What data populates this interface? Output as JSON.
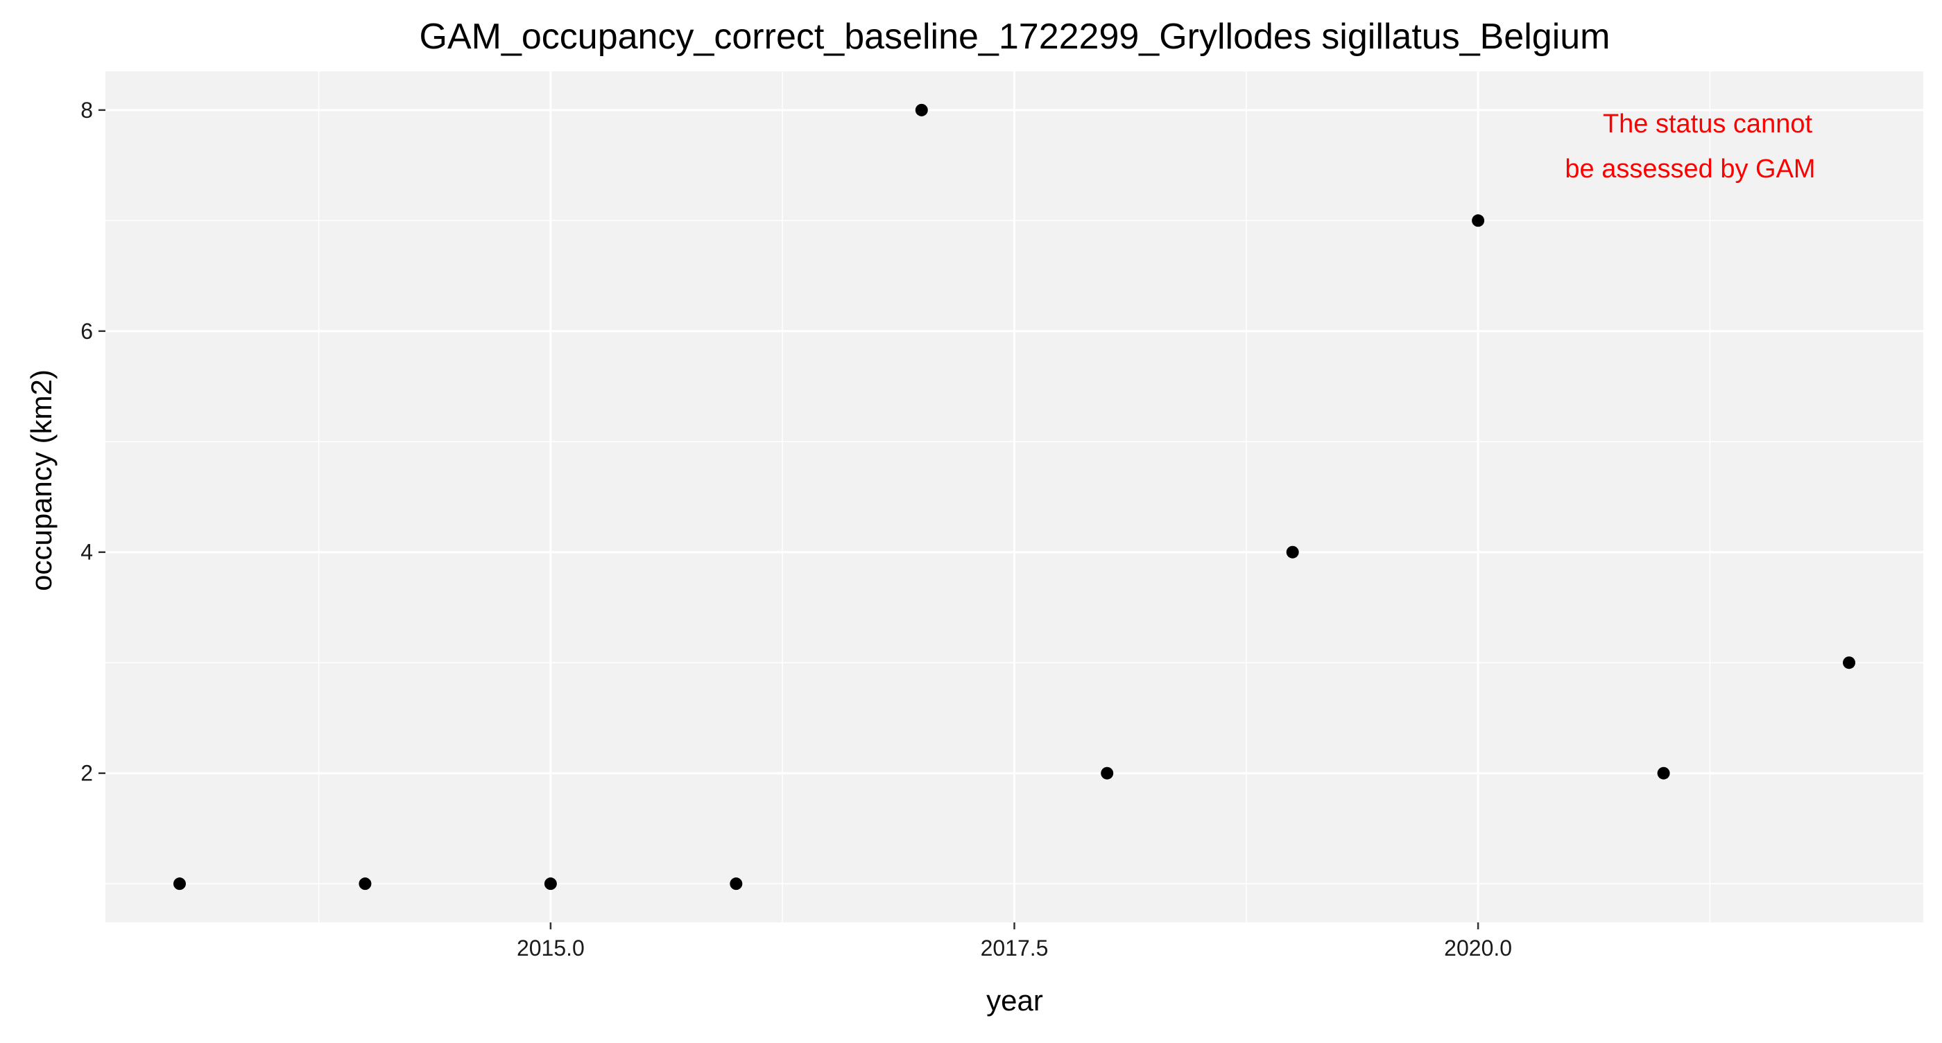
{
  "chart_data": {
    "type": "scatter",
    "title": "GAM_occupancy_correct_baseline_1722299_Gryllodes sigillatus_Belgium",
    "xlabel": "year",
    "ylabel": "occupancy (km2)",
    "x": [
      2013,
      2014,
      2015,
      2016,
      2017,
      2018,
      2019,
      2020,
      2021,
      2022
    ],
    "y": [
      1,
      1,
      1,
      1,
      8,
      2,
      4,
      7,
      2,
      3
    ],
    "xlim": [
      2012.6,
      2022.4
    ],
    "ylim": [
      0.65,
      8.35
    ],
    "x_ticks": [
      2015.0,
      2017.5,
      2020.0
    ],
    "x_tick_labels": [
      "2015.0",
      "2017.5",
      "2020.0"
    ],
    "y_ticks": [
      2,
      4,
      6,
      8
    ],
    "y_tick_labels": [
      "2",
      "4",
      "6",
      "8"
    ],
    "grid": true,
    "annotation": {
      "lines": [
        "The status cannot",
        "be assessed by GAM"
      ],
      "color": "#ff0000",
      "placement": "top-right"
    },
    "colors": {
      "panel_background": "#f2f2f2",
      "grid": "#ffffff",
      "points": "#000000"
    }
  }
}
